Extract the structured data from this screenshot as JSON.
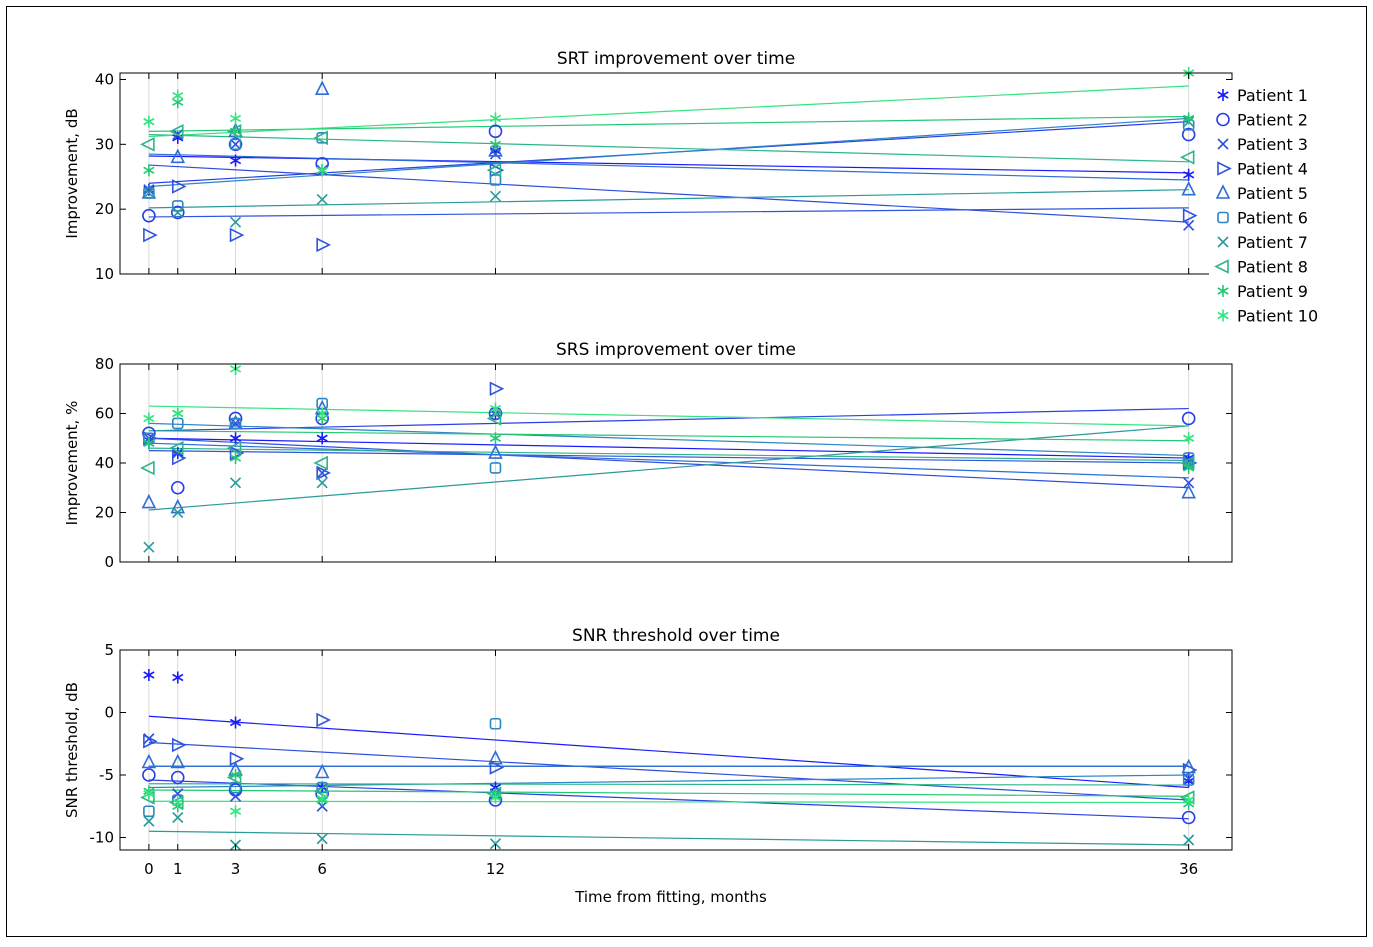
{
  "figure": {
    "xlabel": "Time from fitting, months"
  },
  "series_styles": [
    {
      "name": "Patient 1",
      "marker": "asterisk",
      "color": "#1a1aff"
    },
    {
      "name": "Patient 2",
      "marker": "circle",
      "color": "#2a3fe6"
    },
    {
      "name": "Patient 3",
      "marker": "x",
      "color": "#2f4fe0"
    },
    {
      "name": "Patient 4",
      "marker": "triangle-right",
      "color": "#2f55dc"
    },
    {
      "name": "Patient 5",
      "marker": "triangle-up",
      "color": "#2c6ed6"
    },
    {
      "name": "Patient 6",
      "marker": "square",
      "color": "#2a86c4"
    },
    {
      "name": "Patient 7",
      "marker": "x",
      "color": "#2a9a9a"
    },
    {
      "name": "Patient 8",
      "marker": "triangle-left",
      "color": "#2db58a"
    },
    {
      "name": "Patient 9",
      "marker": "asterisk",
      "color": "#22c873"
    },
    {
      "name": "Patient 10",
      "marker": "asterisk",
      "color": "#33e37e"
    }
  ],
  "chart_data": [
    {
      "type": "scatter",
      "title": "SRT improvement over time",
      "xlabel": "",
      "ylabel": "Improvement, dB",
      "xlim": [
        -1,
        37.5
      ],
      "ylim": [
        10,
        41
      ],
      "xticks": [
        0,
        1,
        3,
        6,
        12,
        36
      ],
      "yticks": [
        10,
        20,
        30,
        40
      ],
      "grid": "x",
      "legend": "right",
      "series": [
        {
          "name": "Patient 1",
          "x": [
            0,
            1,
            3,
            6,
            12,
            36
          ],
          "y": [
            23,
            31,
            27.5,
            26,
            29,
            25.3
          ],
          "fit": [
            28.2,
            25.6
          ]
        },
        {
          "name": "Patient 2",
          "x": [
            0,
            1,
            3,
            6,
            12,
            36
          ],
          "y": [
            19,
            19.5,
            30,
            27,
            32,
            31.5
          ],
          "fit": [
            24,
            33.5
          ]
        },
        {
          "name": "Patient 3",
          "x": [
            0,
            1,
            3,
            6,
            12,
            36
          ],
          "y": [
            23,
            31.5,
            30,
            26,
            28.5,
            17.5
          ],
          "fit": [
            26.8,
            18
          ]
        },
        {
          "name": "Patient 4",
          "x": [
            0,
            1,
            3,
            6,
            12,
            36
          ],
          "y": [
            16,
            23.5,
            16,
            14.5,
            26,
            19
          ],
          "fit": [
            18.8,
            20.2
          ]
        },
        {
          "name": "Patient 5",
          "x": [
            0,
            1,
            3,
            6,
            12,
            36
          ],
          "y": [
            22.5,
            28,
            32,
            38.5,
            29,
            23
          ],
          "fit": [
            28.5,
            24.5
          ]
        },
        {
          "name": "Patient 6",
          "x": [
            0,
            1,
            3,
            6,
            12,
            36
          ],
          "y": [
            22.5,
            20.5,
            30,
            31,
            24.5,
            33
          ],
          "fit": [
            23.5,
            34
          ]
        },
        {
          "name": "Patient 7",
          "x": [
            0,
            1,
            3,
            6,
            12,
            36
          ],
          "y": [
            22.5,
            19.5,
            18,
            21.5,
            22,
            33.5
          ],
          "fit": [
            20.2,
            23
          ]
        },
        {
          "name": "Patient 8",
          "x": [
            0,
            1,
            3,
            6,
            12,
            36
          ],
          "y": [
            30,
            32,
            32,
            31,
            26,
            28
          ],
          "fit": [
            31.5,
            27.3
          ]
        },
        {
          "name": "Patient 9",
          "x": [
            0,
            1,
            3,
            6,
            12,
            36
          ],
          "y": [
            26,
            36.5,
            32,
            26,
            30,
            34
          ],
          "fit": [
            32,
            34.3
          ]
        },
        {
          "name": "Patient 10",
          "x": [
            0,
            1,
            3,
            6,
            12,
            36
          ],
          "y": [
            33.5,
            37.5,
            34,
            26,
            34,
            41
          ],
          "fit": [
            31.2,
            39
          ]
        }
      ]
    },
    {
      "type": "scatter",
      "title": "SRS improvement over time",
      "xlabel": "",
      "ylabel": "Improvement, %",
      "xlim": [
        -1,
        37.5
      ],
      "ylim": [
        0,
        80
      ],
      "xticks": [
        0,
        1,
        3,
        6,
        12,
        36
      ],
      "yticks": [
        0,
        20,
        40,
        60,
        80
      ],
      "grid": "x",
      "series": [
        {
          "name": "Patient 1",
          "x": [
            0,
            1,
            3,
            6,
            12,
            36
          ],
          "y": [
            48,
            44,
            50,
            50,
            60,
            42
          ],
          "fit": [
            50,
            42
          ]
        },
        {
          "name": "Patient 2",
          "x": [
            0,
            1,
            3,
            6,
            12,
            36
          ],
          "y": [
            52,
            30,
            58,
            58,
            60,
            58
          ],
          "fit": [
            53,
            62
          ]
        },
        {
          "name": "Patient 3",
          "x": [
            0,
            1,
            3,
            6,
            12,
            36
          ],
          "y": [
            50,
            44,
            56,
            36,
            60,
            32
          ],
          "fit": [
            50,
            30
          ]
        },
        {
          "name": "Patient 4",
          "x": [
            0,
            1,
            3,
            6,
            12,
            36
          ],
          "y": [
            50,
            42,
            44,
            36,
            70,
            40
          ],
          "fit": [
            45,
            40
          ]
        },
        {
          "name": "Patient 5",
          "x": [
            0,
            1,
            3,
            6,
            12,
            36
          ],
          "y": [
            24,
            22,
            56,
            62,
            44,
            28
          ],
          "fit": [
            48,
            34
          ]
        },
        {
          "name": "Patient 6",
          "x": [
            0,
            1,
            3,
            6,
            12,
            36
          ],
          "y": [
            50,
            56,
            56,
            64,
            38,
            42
          ],
          "fit": [
            56,
            43
          ]
        },
        {
          "name": "Patient 7",
          "x": [
            0,
            1,
            3,
            6,
            12,
            36
          ],
          "y": [
            6,
            20,
            32,
            32,
            60,
            40
          ],
          "fit": [
            21,
            55
          ]
        },
        {
          "name": "Patient 8",
          "x": [
            0,
            1,
            3,
            6,
            12,
            36
          ],
          "y": [
            38,
            46,
            46,
            40,
            58,
            40
          ],
          "fit": [
            46,
            41
          ]
        },
        {
          "name": "Patient 9",
          "x": [
            0,
            1,
            3,
            6,
            12,
            36
          ],
          "y": [
            48,
            60,
            42,
            58,
            50,
            38
          ],
          "fit": [
            53,
            49
          ]
        },
        {
          "name": "Patient 10",
          "x": [
            0,
            1,
            3,
            6,
            12,
            36
          ],
          "y": [
            58,
            60,
            78,
            60,
            62,
            50
          ],
          "fit": [
            63,
            55
          ]
        }
      ]
    },
    {
      "type": "scatter",
      "title": "SNR threshold over time",
      "xlabel": "Time from fitting, months",
      "ylabel": "SNR threshold, dB",
      "xlim": [
        -1,
        37.5
      ],
      "ylim": [
        -11,
        5
      ],
      "xticks": [
        0,
        1,
        3,
        6,
        12,
        36
      ],
      "yticks": [
        -10,
        -5,
        0,
        5
      ],
      "grid": "x",
      "series": [
        {
          "name": "Patient 1",
          "x": [
            0,
            1,
            3,
            6,
            12,
            36
          ],
          "y": [
            3,
            2.8,
            -0.8,
            -6,
            -6,
            -5.5
          ],
          "fit": [
            -0.3,
            -6
          ]
        },
        {
          "name": "Patient 2",
          "x": [
            0,
            1,
            3,
            6,
            12,
            36
          ],
          "y": [
            -5,
            -5.2,
            -6.2,
            -6.5,
            -7,
            -8.4
          ],
          "fit": [
            -5.4,
            -8.5
          ]
        },
        {
          "name": "Patient 3",
          "x": [
            0,
            1,
            3,
            6,
            12,
            36
          ],
          "y": [
            -2.1,
            -6.5,
            -6.7,
            -7.5,
            -6.5,
            -5.3
          ],
          "fit": [
            -2.4,
            -7
          ]
        },
        {
          "name": "Patient 4",
          "x": [
            0,
            1,
            3,
            6,
            12,
            36
          ],
          "y": [
            -2.3,
            -2.6,
            -3.7,
            -0.6,
            -4.4,
            -4.6
          ],
          "fit": [
            -4.3,
            -4.3
          ]
        },
        {
          "name": "Patient 5",
          "x": [
            0,
            1,
            3,
            6,
            12,
            36
          ],
          "y": [
            -4,
            -4,
            -4.6,
            -4.8,
            -3.7,
            -4.4
          ],
          "fit": [
            -4.3,
            -4.3
          ]
        },
        {
          "name": "Patient 6",
          "x": [
            0,
            1,
            3,
            6,
            12,
            36
          ],
          "y": [
            -7.9,
            -7,
            -6,
            -6,
            -0.9,
            -5.4
          ],
          "fit": [
            -6,
            -5
          ]
        },
        {
          "name": "Patient 7",
          "x": [
            0,
            1,
            3,
            6,
            12,
            36
          ],
          "y": [
            -8.7,
            -8.4,
            -10.6,
            -10.1,
            -10.5,
            -10.2
          ],
          "fit": [
            -9.5,
            -10.6
          ]
        },
        {
          "name": "Patient 8",
          "x": [
            0,
            1,
            3,
            6,
            12,
            36
          ],
          "y": [
            -6.8,
            -7.2,
            -5.2,
            -6.3,
            -6.5,
            -6.8
          ],
          "fit": [
            -5.7,
            -5.8
          ]
        },
        {
          "name": "Patient 9",
          "x": [
            0,
            1,
            3,
            6,
            12,
            36
          ],
          "y": [
            -6.3,
            -7.5,
            -5,
            -7,
            -6.5,
            -7.3
          ],
          "fit": [
            -6.2,
            -6.7
          ]
        },
        {
          "name": "Patient 10",
          "x": [
            0,
            1,
            3,
            6,
            12,
            36
          ],
          "y": [
            -6.5,
            -7.2,
            -7.9,
            -6.9,
            -6.8,
            -7
          ],
          "fit": [
            -7.1,
            -7.2
          ]
        }
      ]
    }
  ]
}
